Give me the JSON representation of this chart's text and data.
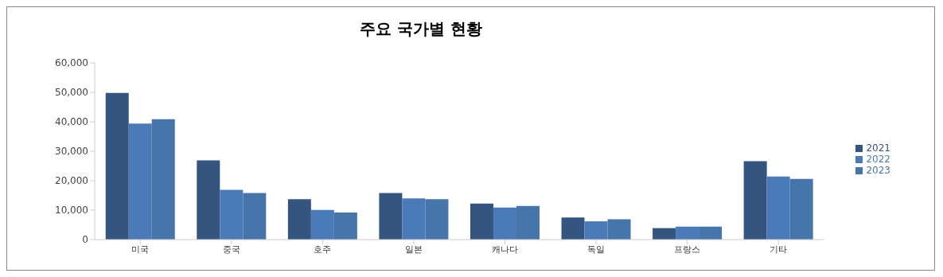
{
  "chart_data": {
    "type": "bar",
    "title": "주요 국가별 현황",
    "categories": [
      "미국",
      "중국",
      "호주",
      "일본",
      "캐나다",
      "독일",
      "프랑스",
      "기타"
    ],
    "series": [
      {
        "name": "2021",
        "color": "#34557f",
        "values": [
          49800,
          26900,
          13700,
          15800,
          12200,
          7500,
          3900,
          26600
        ]
      },
      {
        "name": "2022",
        "color": "#4a7ab8",
        "values": [
          39400,
          16900,
          10100,
          14000,
          10900,
          6200,
          4400,
          21400
        ]
      },
      {
        "name": "2023",
        "color": "#4675ab",
        "values": [
          40900,
          15800,
          9200,
          13700,
          11400,
          6900,
          4400,
          20600
        ]
      }
    ],
    "ylim": [
      0,
      60000
    ],
    "yticks": [
      {
        "value": 0,
        "label": "0"
      },
      {
        "value": 10000,
        "label": "10,000"
      },
      {
        "value": 20000,
        "label": "20,000"
      },
      {
        "value": 30000,
        "label": "30,000"
      },
      {
        "value": 40000,
        "label": "40,000"
      },
      {
        "value": 50000,
        "label": "50,000"
      },
      {
        "value": 60000,
        "label": "60,000"
      }
    ],
    "grid": false,
    "legend": "right"
  }
}
